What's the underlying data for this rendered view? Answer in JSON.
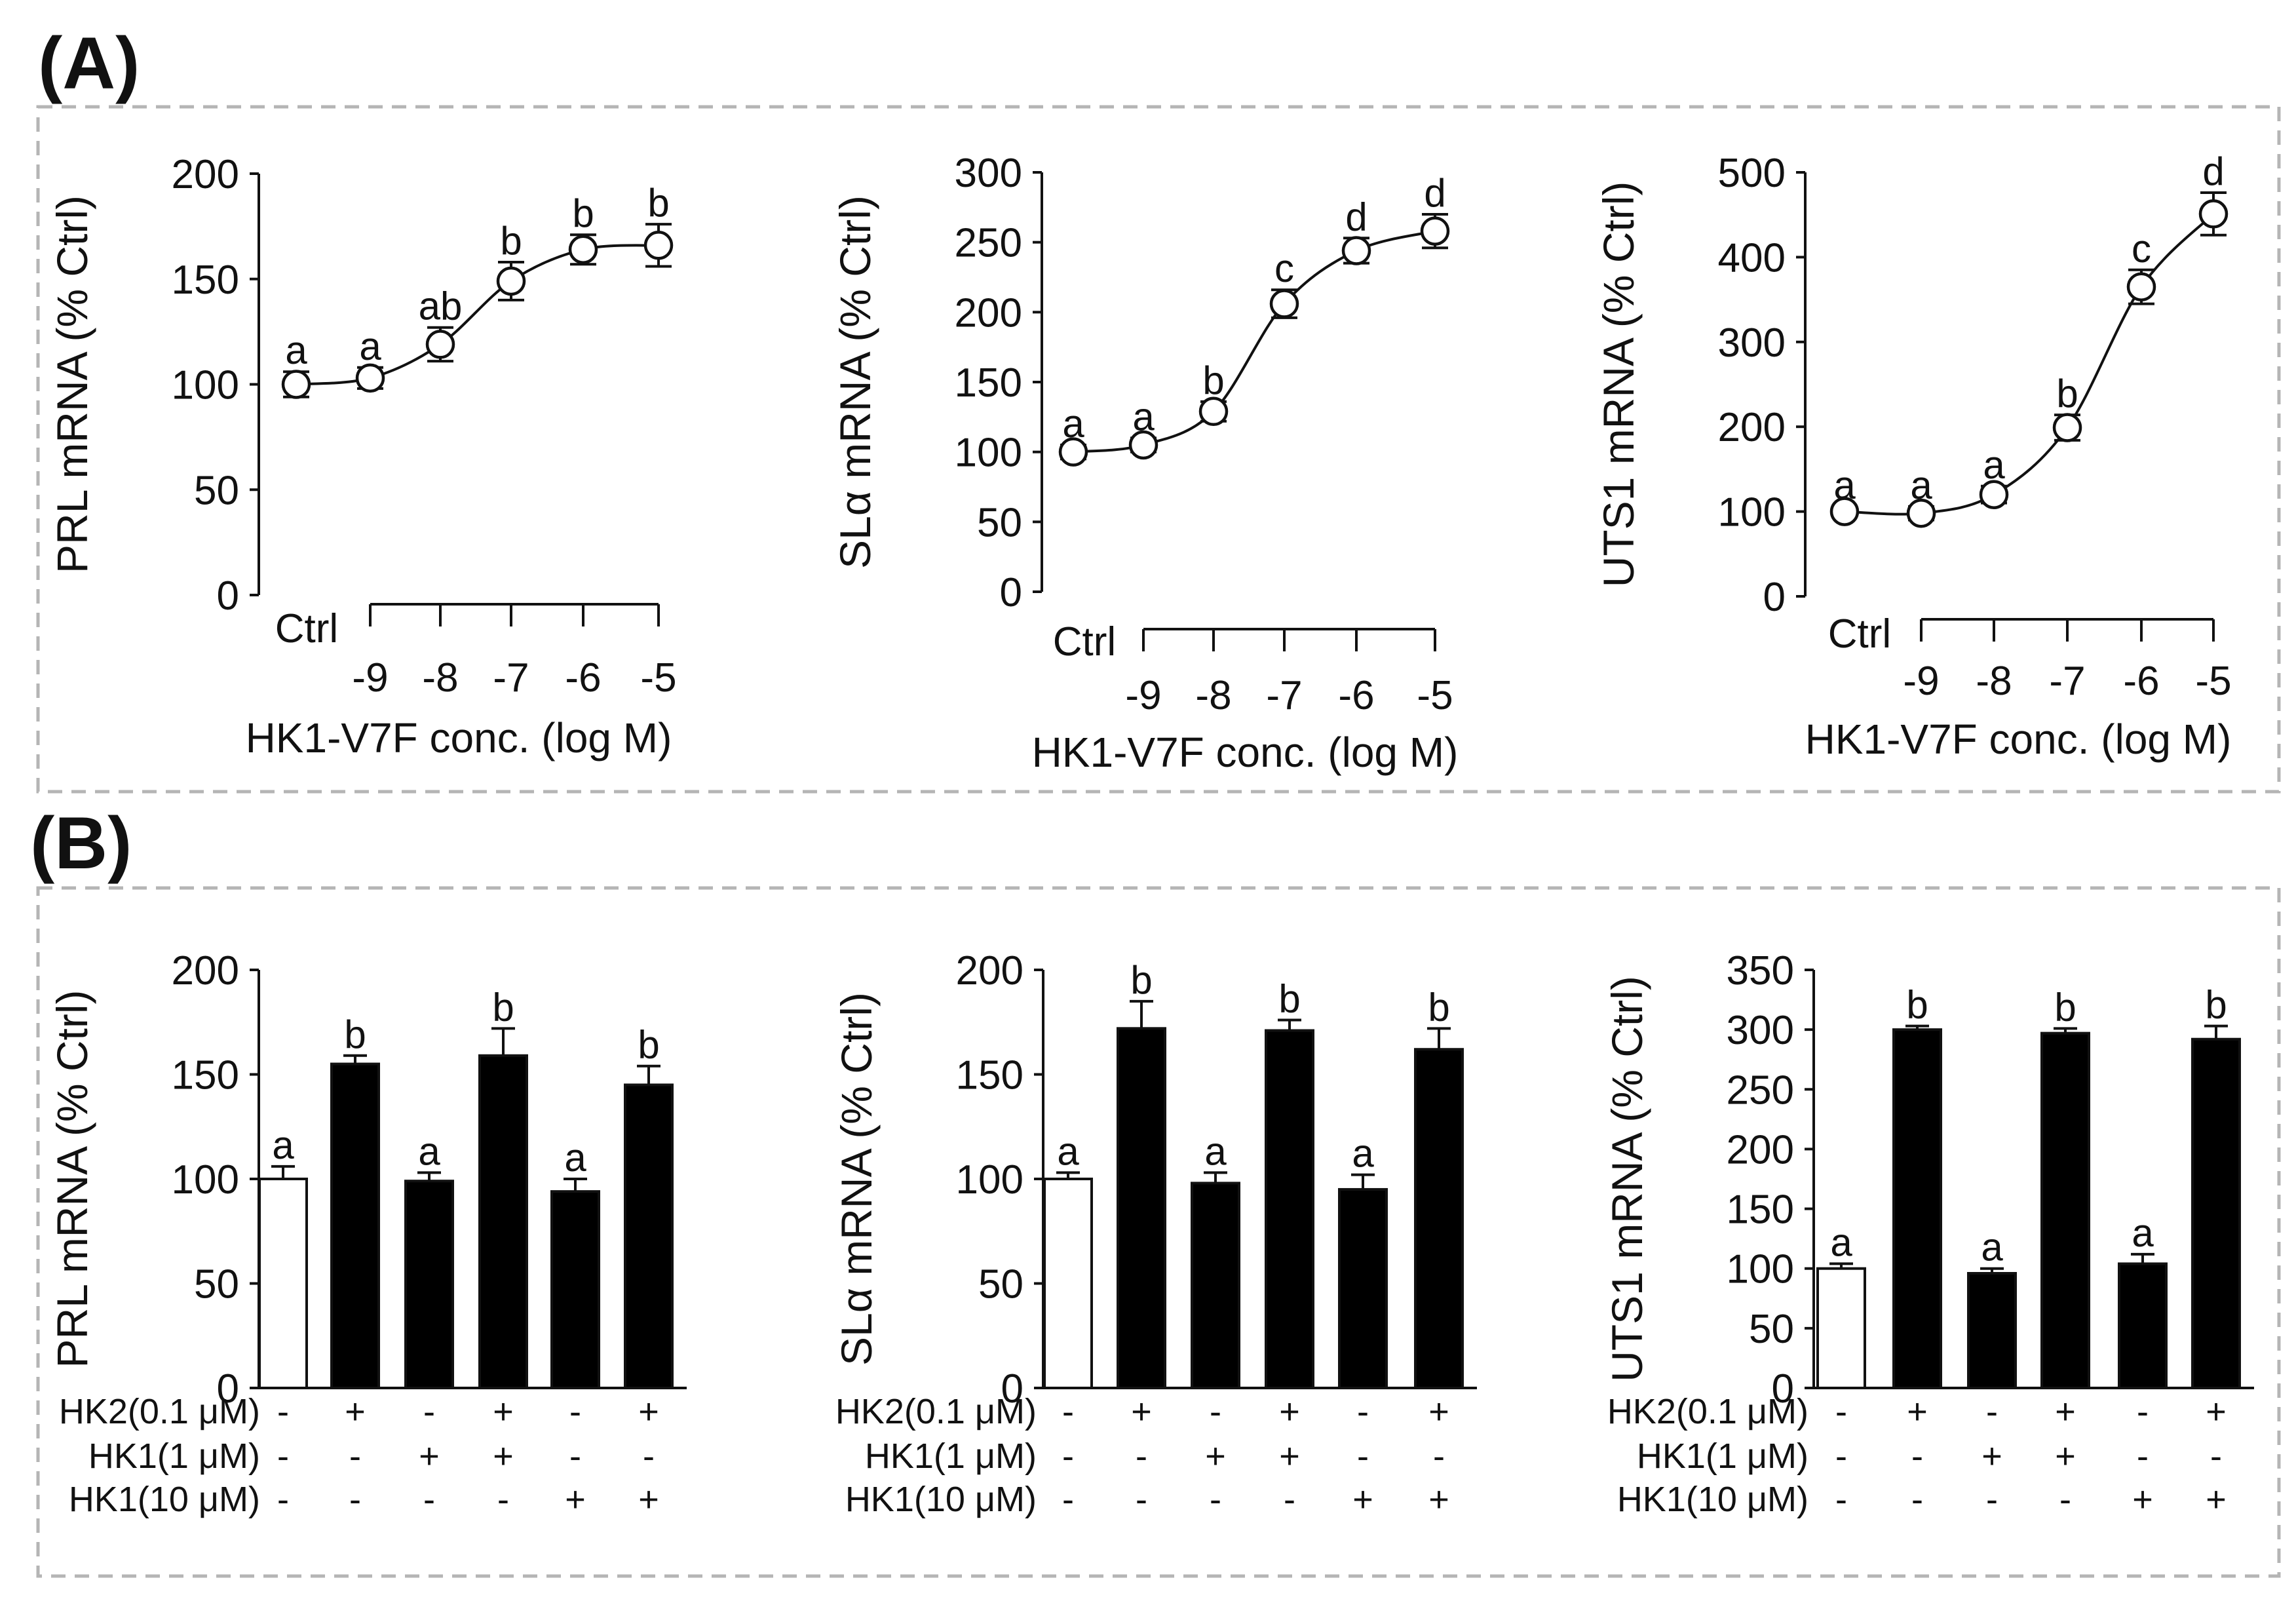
{
  "figure": {
    "panel_labels": [
      "(A)",
      "(B)"
    ]
  },
  "chart_data": [
    {
      "type": "line",
      "panel": "(A)",
      "ylabel": "PRL mRNA (% Ctrl)",
      "xlabel": "HK1-V7F conc. (log M)",
      "ylim": [
        0,
        200
      ],
      "yticks": [
        0,
        50,
        100,
        150,
        200
      ],
      "ctrl_label": "Ctrl",
      "x_ticks": [
        "-9",
        "-8",
        "-7",
        "-6",
        "-5"
      ],
      "x": [
        "Ctrl",
        -9,
        -8,
        -7,
        -6,
        -5
      ],
      "values": [
        100,
        103,
        119,
        149,
        164,
        166
      ],
      "errors": [
        6,
        5,
        8,
        9,
        7,
        10
      ],
      "letters": [
        "a",
        "a",
        "ab",
        "b",
        "b",
        "b"
      ]
    },
    {
      "type": "line",
      "panel": "(A)",
      "ylabel": "SLα mRNA (% Ctrl)",
      "xlabel": "HK1-V7F conc. (log M)",
      "ylim": [
        0,
        300
      ],
      "yticks": [
        0,
        50,
        100,
        150,
        200,
        250,
        300
      ],
      "ctrl_label": "Ctrl",
      "x_ticks": [
        "-9",
        "-8",
        "-7",
        "-6",
        "-5"
      ],
      "x": [
        "Ctrl",
        -9,
        -8,
        -7,
        -6,
        -5
      ],
      "values": [
        100,
        105,
        129,
        206,
        244,
        258
      ],
      "errors": [
        5,
        5,
        7,
        10,
        9,
        12
      ],
      "letters": [
        "a",
        "a",
        "b",
        "c",
        "d",
        "d"
      ]
    },
    {
      "type": "line",
      "panel": "(A)",
      "ylabel": "UTS1 mRNA (% Ctrl)",
      "xlabel": "HK1-V7F conc. (log M)",
      "ylim": [
        0,
        500
      ],
      "yticks": [
        0,
        100,
        200,
        300,
        400,
        500
      ],
      "ctrl_label": "Ctrl",
      "x_ticks": [
        "-9",
        "-8",
        "-7",
        "-6",
        "-5"
      ],
      "x": [
        "Ctrl",
        -9,
        -8,
        -7,
        -6,
        -5
      ],
      "values": [
        100,
        98,
        120,
        199,
        365,
        451
      ],
      "errors": [
        6,
        8,
        10,
        15,
        20,
        25
      ],
      "letters": [
        "a",
        "a",
        "a",
        "b",
        "c",
        "d"
      ]
    },
    {
      "type": "bar",
      "panel": "(B)",
      "ylabel": "PRL mRNA (% Ctrl)",
      "ylim": [
        0,
        200
      ],
      "yticks": [
        0,
        50,
        100,
        150,
        200
      ],
      "values": [
        100,
        155,
        99,
        159,
        94,
        145
      ],
      "errors": [
        6,
        4,
        4,
        13,
        6,
        9
      ],
      "letters": [
        "a",
        "b",
        "a",
        "b",
        "a",
        "b"
      ],
      "bar_fills": [
        "#ffffff",
        "#000000",
        "#000000",
        "#000000",
        "#000000",
        "#000000"
      ],
      "conditions": [
        {
          "label": "HK2(0.1 μM)",
          "signs": [
            "-",
            "+",
            "-",
            "+",
            "-",
            "+"
          ]
        },
        {
          "label": "HK1(1 μM)",
          "signs": [
            "-",
            "-",
            "+",
            "+",
            "-",
            "-"
          ]
        },
        {
          "label": "HK1(10 μM)",
          "signs": [
            "-",
            "-",
            "-",
            "-",
            "+",
            "+"
          ]
        }
      ]
    },
    {
      "type": "bar",
      "panel": "(B)",
      "ylabel": "SLα mRNA (% Ctrl)",
      "ylim": [
        0,
        200
      ],
      "yticks": [
        0,
        50,
        100,
        150,
        200
      ],
      "values": [
        100,
        172,
        98,
        171,
        95,
        162
      ],
      "errors": [
        3,
        13,
        5,
        5,
        7,
        10
      ],
      "letters": [
        "a",
        "b",
        "a",
        "b",
        "a",
        "b"
      ],
      "bar_fills": [
        "#ffffff",
        "#000000",
        "#000000",
        "#000000",
        "#000000",
        "#000000"
      ],
      "conditions": [
        {
          "label": "HK2(0.1 μM)",
          "signs": [
            "-",
            "+",
            "-",
            "+",
            "-",
            "+"
          ]
        },
        {
          "label": "HK1(1 μM)",
          "signs": [
            "-",
            "-",
            "+",
            "+",
            "-",
            "-"
          ]
        },
        {
          "label": "HK1(10 μM)",
          "signs": [
            "-",
            "-",
            "-",
            "-",
            "+",
            "+"
          ]
        }
      ]
    },
    {
      "type": "bar",
      "panel": "(B)",
      "ylabel": "UTS1 mRNA (% Ctrl)",
      "ylim": [
        0,
        350
      ],
      "yticks": [
        0,
        50,
        100,
        150,
        200,
        250,
        300,
        350
      ],
      "values": [
        100,
        300,
        96,
        297,
        104,
        292
      ],
      "errors": [
        4,
        3,
        4,
        4,
        8,
        11
      ],
      "letters": [
        "a",
        "b",
        "a",
        "b",
        "a",
        "b"
      ],
      "bar_fills": [
        "#ffffff",
        "#000000",
        "#000000",
        "#000000",
        "#000000",
        "#000000"
      ],
      "conditions": [
        {
          "label": "HK2(0.1 μM)",
          "signs": [
            "-",
            "+",
            "-",
            "+",
            "-",
            "+"
          ]
        },
        {
          "label": "HK1(1 μM)",
          "signs": [
            "-",
            "-",
            "+",
            "+",
            "-",
            "-"
          ]
        },
        {
          "label": "HK1(10 μM)",
          "signs": [
            "-",
            "-",
            "-",
            "-",
            "+",
            "+"
          ]
        }
      ]
    }
  ]
}
